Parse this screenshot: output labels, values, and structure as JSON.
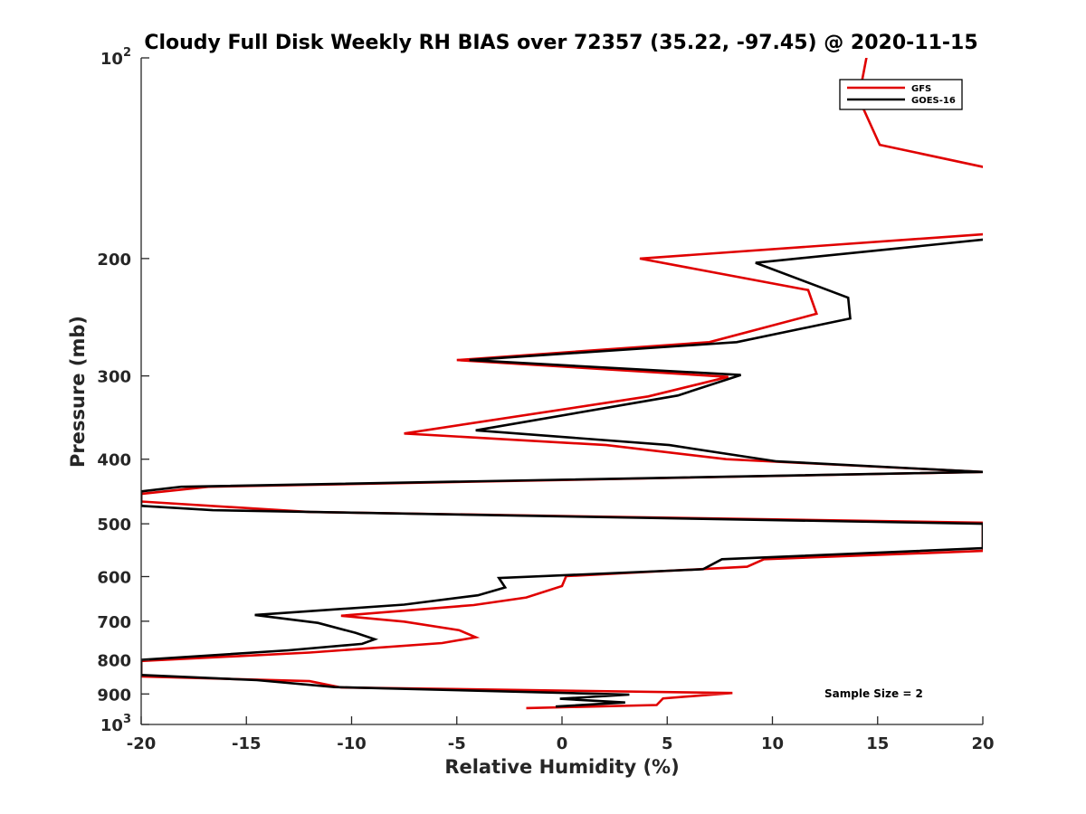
{
  "chart_data": {
    "type": "line",
    "title": "Cloudy Full Disk Weekly RH BIAS over 72357 (35.22, -97.45) @ 2020-11-15",
    "xlabel": "Relative Humidity (%)",
    "ylabel": "Pressure (mb)",
    "xlim": [
      -20,
      20
    ],
    "ylim": [
      100,
      1000
    ],
    "y_scale": "log",
    "y_reversed": true,
    "grid": false,
    "legend_position": "top-right",
    "x_ticks": [
      "-20",
      "-15",
      "-10",
      "-5",
      "0",
      "5",
      "10",
      "15",
      "20"
    ],
    "y_ticks": [
      {
        "value": 100,
        "base": "10",
        "exp": "2"
      },
      {
        "value": 200,
        "label": "200"
      },
      {
        "value": 300,
        "label": "300"
      },
      {
        "value": 400,
        "label": "400"
      },
      {
        "value": 500,
        "label": "500"
      },
      {
        "value": 600,
        "label": "600"
      },
      {
        "value": 700,
        "label": "700"
      },
      {
        "value": 800,
        "label": "800"
      },
      {
        "value": 900,
        "label": "900"
      },
      {
        "value": 1000,
        "base": "10",
        "exp": "3"
      }
    ],
    "annotation": "Sample Size = 2",
    "series": [
      {
        "name": "GFS",
        "color": "#e00000",
        "points": [
          {
            "x": 14.6,
            "y": 95
          },
          {
            "x": 14.1,
            "y": 115
          },
          {
            "x": 15.1,
            "y": 135
          },
          {
            "x": 21,
            "y": 148
          },
          {
            "x": 21,
            "y": 183
          },
          {
            "x": 3.7,
            "y": 200
          },
          {
            "x": 11.7,
            "y": 223
          },
          {
            "x": 12.1,
            "y": 242
          },
          {
            "x": 7.0,
            "y": 267
          },
          {
            "x": -5.0,
            "y": 284
          },
          {
            "x": 7.9,
            "y": 301
          },
          {
            "x": 4.1,
            "y": 322
          },
          {
            "x": -7.5,
            "y": 366
          },
          {
            "x": 2.1,
            "y": 381
          },
          {
            "x": 7.8,
            "y": 400
          },
          {
            "x": 20,
            "y": 418
          },
          {
            "x": -16.8,
            "y": 440
          },
          {
            "x": -20,
            "y": 451
          },
          {
            "x": -20,
            "y": 463
          },
          {
            "x": -12,
            "y": 480
          },
          {
            "x": 20,
            "y": 498
          },
          {
            "x": 20,
            "y": 549
          },
          {
            "x": 9.6,
            "y": 565
          },
          {
            "x": 8.8,
            "y": 580
          },
          {
            "x": 0.2,
            "y": 599
          },
          {
            "x": 0.0,
            "y": 620
          },
          {
            "x": -1.7,
            "y": 645
          },
          {
            "x": -4.2,
            "y": 662
          },
          {
            "x": -10.5,
            "y": 687
          },
          {
            "x": -7.5,
            "y": 701
          },
          {
            "x": -4.9,
            "y": 722
          },
          {
            "x": -4.1,
            "y": 740
          },
          {
            "x": -5.7,
            "y": 755
          },
          {
            "x": -12,
            "y": 780
          },
          {
            "x": -20,
            "y": 803
          },
          {
            "x": -20,
            "y": 847
          },
          {
            "x": -12,
            "y": 861
          },
          {
            "x": -10.5,
            "y": 880
          },
          {
            "x": 8.1,
            "y": 897
          },
          {
            "x": 4.8,
            "y": 914
          },
          {
            "x": 4.5,
            "y": 935
          },
          {
            "x": -1.7,
            "y": 945
          }
        ]
      },
      {
        "name": "GOES-16",
        "color": "#000000",
        "points": [
          {
            "x": 21,
            "y": 186
          },
          {
            "x": 9.2,
            "y": 203
          },
          {
            "x": 13.6,
            "y": 229
          },
          {
            "x": 13.7,
            "y": 246
          },
          {
            "x": 8.3,
            "y": 267
          },
          {
            "x": -4.4,
            "y": 284
          },
          {
            "x": 8.5,
            "y": 299
          },
          {
            "x": 5.5,
            "y": 321
          },
          {
            "x": -4.1,
            "y": 362
          },
          {
            "x": 5.1,
            "y": 381
          },
          {
            "x": 10.2,
            "y": 403
          },
          {
            "x": 20,
            "y": 418
          },
          {
            "x": -18.1,
            "y": 440
          },
          {
            "x": -20,
            "y": 447
          },
          {
            "x": -20,
            "y": 470
          },
          {
            "x": -16.6,
            "y": 477
          },
          {
            "x": 20,
            "y": 500
          },
          {
            "x": 20,
            "y": 544
          },
          {
            "x": 7.6,
            "y": 565
          },
          {
            "x": 6.7,
            "y": 585
          },
          {
            "x": -3.0,
            "y": 603
          },
          {
            "x": -2.7,
            "y": 623
          },
          {
            "x": -4.0,
            "y": 640
          },
          {
            "x": -7.5,
            "y": 661
          },
          {
            "x": -14.6,
            "y": 685
          },
          {
            "x": -11.6,
            "y": 704
          },
          {
            "x": -9.8,
            "y": 729
          },
          {
            "x": -8.9,
            "y": 745
          },
          {
            "x": -9.5,
            "y": 757
          },
          {
            "x": -13,
            "y": 774
          },
          {
            "x": -20,
            "y": 800
          },
          {
            "x": -20,
            "y": 843
          },
          {
            "x": -14.5,
            "y": 858
          },
          {
            "x": -10.8,
            "y": 879
          },
          {
            "x": 3.2,
            "y": 902
          },
          {
            "x": -0.1,
            "y": 915
          },
          {
            "x": 3.0,
            "y": 927
          },
          {
            "x": -0.3,
            "y": 940
          }
        ]
      }
    ]
  }
}
